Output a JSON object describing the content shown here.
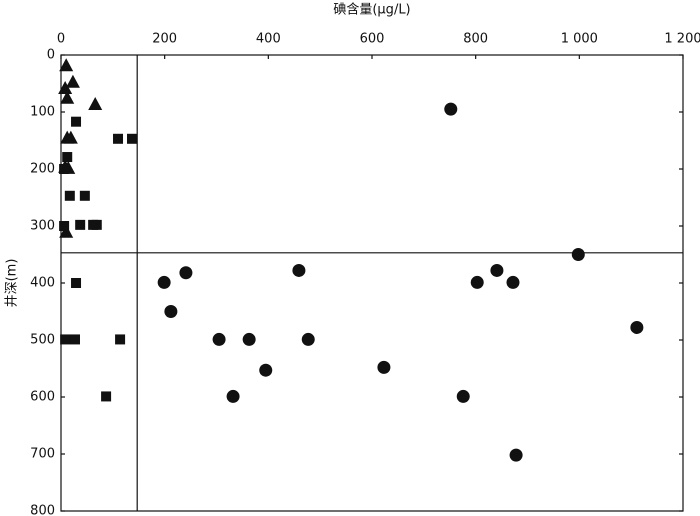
{
  "chart_data": {
    "type": "scatter",
    "x_label": "碘含量(μg/L)",
    "y_label": "井深(m)",
    "x_axis_position": "top",
    "y_inverted": true,
    "xlim": [
      0,
      1200
    ],
    "xticks": [
      0,
      200,
      400,
      600,
      800,
      {
        "value": 1000,
        "label": "1 000"
      },
      {
        "value": 1200,
        "label": "1 200"
      }
    ],
    "ylim": [
      0,
      800
    ],
    "yticks": [
      0,
      100,
      200,
      300,
      400,
      500,
      600,
      700,
      800
    ],
    "vline": 147,
    "hline": 347,
    "series": [
      {
        "marker": "triangle",
        "color": "#111111",
        "x": [
          10,
          23,
          8,
          12,
          66,
          12,
          19,
          8,
          14,
          10
        ],
        "values": [
          18,
          47,
          58,
          75,
          86,
          145,
          145,
          196,
          198,
          310
        ]
      },
      {
        "marker": "square",
        "color": "#111111",
        "x": [
          29,
          110,
          137,
          12,
          6,
          17,
          46,
          6,
          37,
          62,
          69,
          29,
          8,
          27,
          114,
          87
        ],
        "values": [
          117,
          147,
          147,
          179,
          200,
          247,
          247,
          300,
          298,
          298,
          298,
          400,
          499,
          499,
          499,
          599
        ]
      },
      {
        "marker": "circle",
        "color": "#111111",
        "x": [
          752,
          998,
          199,
          241,
          459,
          803,
          841,
          872,
          212,
          305,
          363,
          477,
          395,
          623,
          332,
          776,
          1111,
          878
        ],
        "values": [
          95,
          350,
          399,
          382,
          378,
          399,
          378,
          399,
          450,
          499,
          499,
          499,
          553,
          548,
          599,
          599,
          478,
          702
        ]
      }
    ]
  }
}
